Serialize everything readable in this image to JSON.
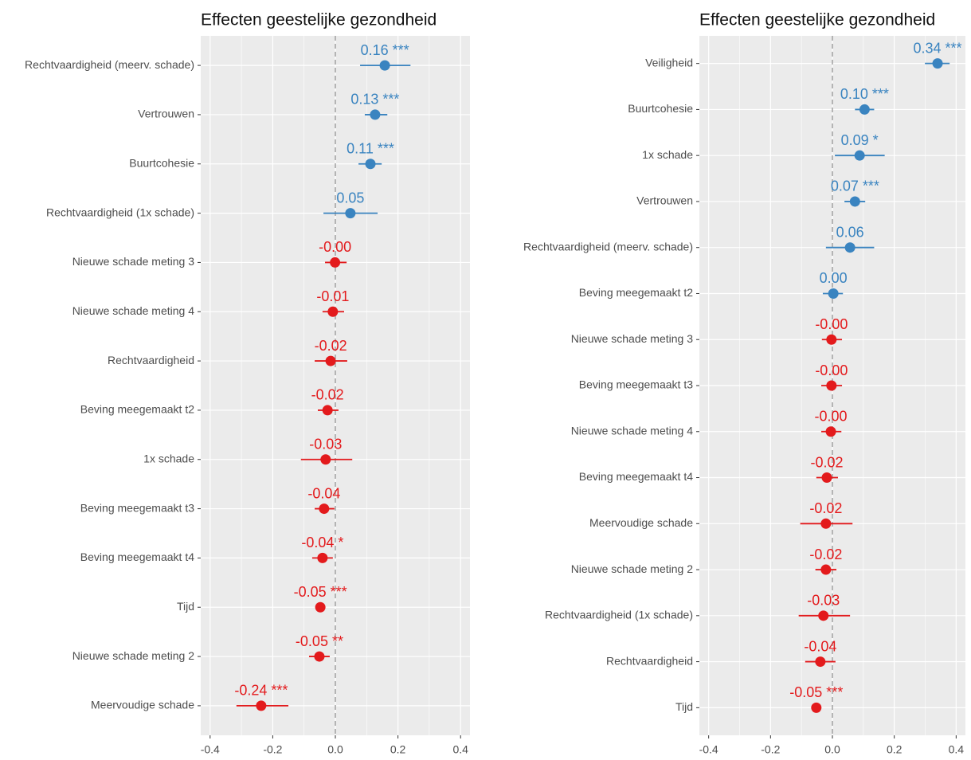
{
  "chart_data": [
    {
      "type": "forest",
      "title": "Effecten geestelijke gezondheid",
      "categories": [
        "Rechtvaardigheid (meerv. schade)",
        "Vertrouwen",
        "Buurtcohesie",
        "Rechtvaardigheid (1x schade)",
        "Nieuwe schade meting 3",
        "Nieuwe schade meting 4",
        "Rechtvaardigheid",
        "Beving meegemaakt t2",
        "1x schade",
        "Beving meegemaakt t3",
        "Beving meegemaakt t4",
        "Tijd",
        "Nieuwe schade meting 2",
        "Meervoudige schade"
      ],
      "values": [
        0.158,
        0.127,
        0.112,
        0.048,
        -0.001,
        -0.008,
        -0.015,
        -0.025,
        -0.031,
        -0.036,
        -0.041,
        -0.048,
        -0.051,
        -0.237
      ],
      "value_labels": [
        "0.16 ***",
        "0.13 ***",
        "0.11 ***",
        "0.05",
        "-0.00",
        "-0.01",
        "-0.02",
        "-0.02",
        "-0.03",
        "-0.04",
        "-0.04 *",
        "-0.05 ***",
        "-0.05 **",
        "-0.24 ***"
      ],
      "ci_low": [
        0.079,
        0.094,
        0.074,
        -0.038,
        -0.033,
        -0.041,
        -0.066,
        -0.056,
        -0.11,
        -0.066,
        -0.074,
        -0.059,
        -0.084,
        -0.316
      ],
      "ci_high": [
        0.24,
        0.166,
        0.148,
        0.135,
        0.036,
        0.028,
        0.038,
        0.01,
        0.054,
        -0.003,
        -0.008,
        -0.036,
        -0.018,
        -0.15
      ],
      "colors": {
        "positive": "#3a84c0",
        "negative": "#e31a1c"
      },
      "xlim": [
        -0.43,
        0.43
      ],
      "xticks": [
        -0.4,
        -0.2,
        {
          "value": 0,
          "label": "0.0"
        },
        0.2,
        0.4
      ],
      "reference_line": 0,
      "grid": true
    },
    {
      "type": "forest",
      "title": "Effecten geestelijke gezondheid",
      "categories": [
        "Veiligheid",
        "Buurtcohesie",
        "1x schade",
        "Vertrouwen",
        "Rechtvaardigheid (meerv. schade)",
        "Beving meegemaakt t2",
        "Nieuwe schade meting 3",
        "Beving meegemaakt t3",
        "Nieuwe schade meting 4",
        "Beving meegemaakt t4",
        "Meervoudige schade",
        "Nieuwe schade meting 2",
        "Rechtvaardigheid (1x schade)",
        "Rechtvaardigheid",
        "Tijd"
      ],
      "values": [
        0.34,
        0.104,
        0.088,
        0.073,
        0.057,
        0.003,
        -0.003,
        -0.003,
        -0.005,
        -0.018,
        -0.021,
        -0.021,
        -0.029,
        -0.039,
        -0.052
      ],
      "value_labels": [
        "0.34 ***",
        "0.10 ***",
        "0.09 *",
        "0.07 ***",
        "0.06",
        "0.00",
        "-0.00",
        "-0.00",
        "-0.00",
        "-0.02",
        "-0.02",
        "-0.02",
        "-0.03",
        "-0.04",
        "-0.05 ***"
      ],
      "ci_low": [
        0.299,
        0.073,
        0.008,
        0.039,
        -0.021,
        -0.031,
        -0.034,
        -0.036,
        -0.036,
        -0.052,
        -0.104,
        -0.055,
        -0.109,
        -0.088,
        -0.062
      ],
      "ci_high": [
        0.379,
        0.135,
        0.169,
        0.106,
        0.135,
        0.034,
        0.031,
        0.031,
        0.029,
        0.018,
        0.065,
        0.013,
        0.057,
        0.01,
        -0.039
      ],
      "colors": {
        "positive": "#3a84c0",
        "negative": "#e31a1c"
      },
      "xlim": [
        -0.43,
        0.43
      ],
      "xticks": [
        -0.4,
        -0.2,
        {
          "value": 0,
          "label": "0.0"
        },
        0.2,
        0.4
      ],
      "reference_line": 0,
      "grid": true
    }
  ]
}
